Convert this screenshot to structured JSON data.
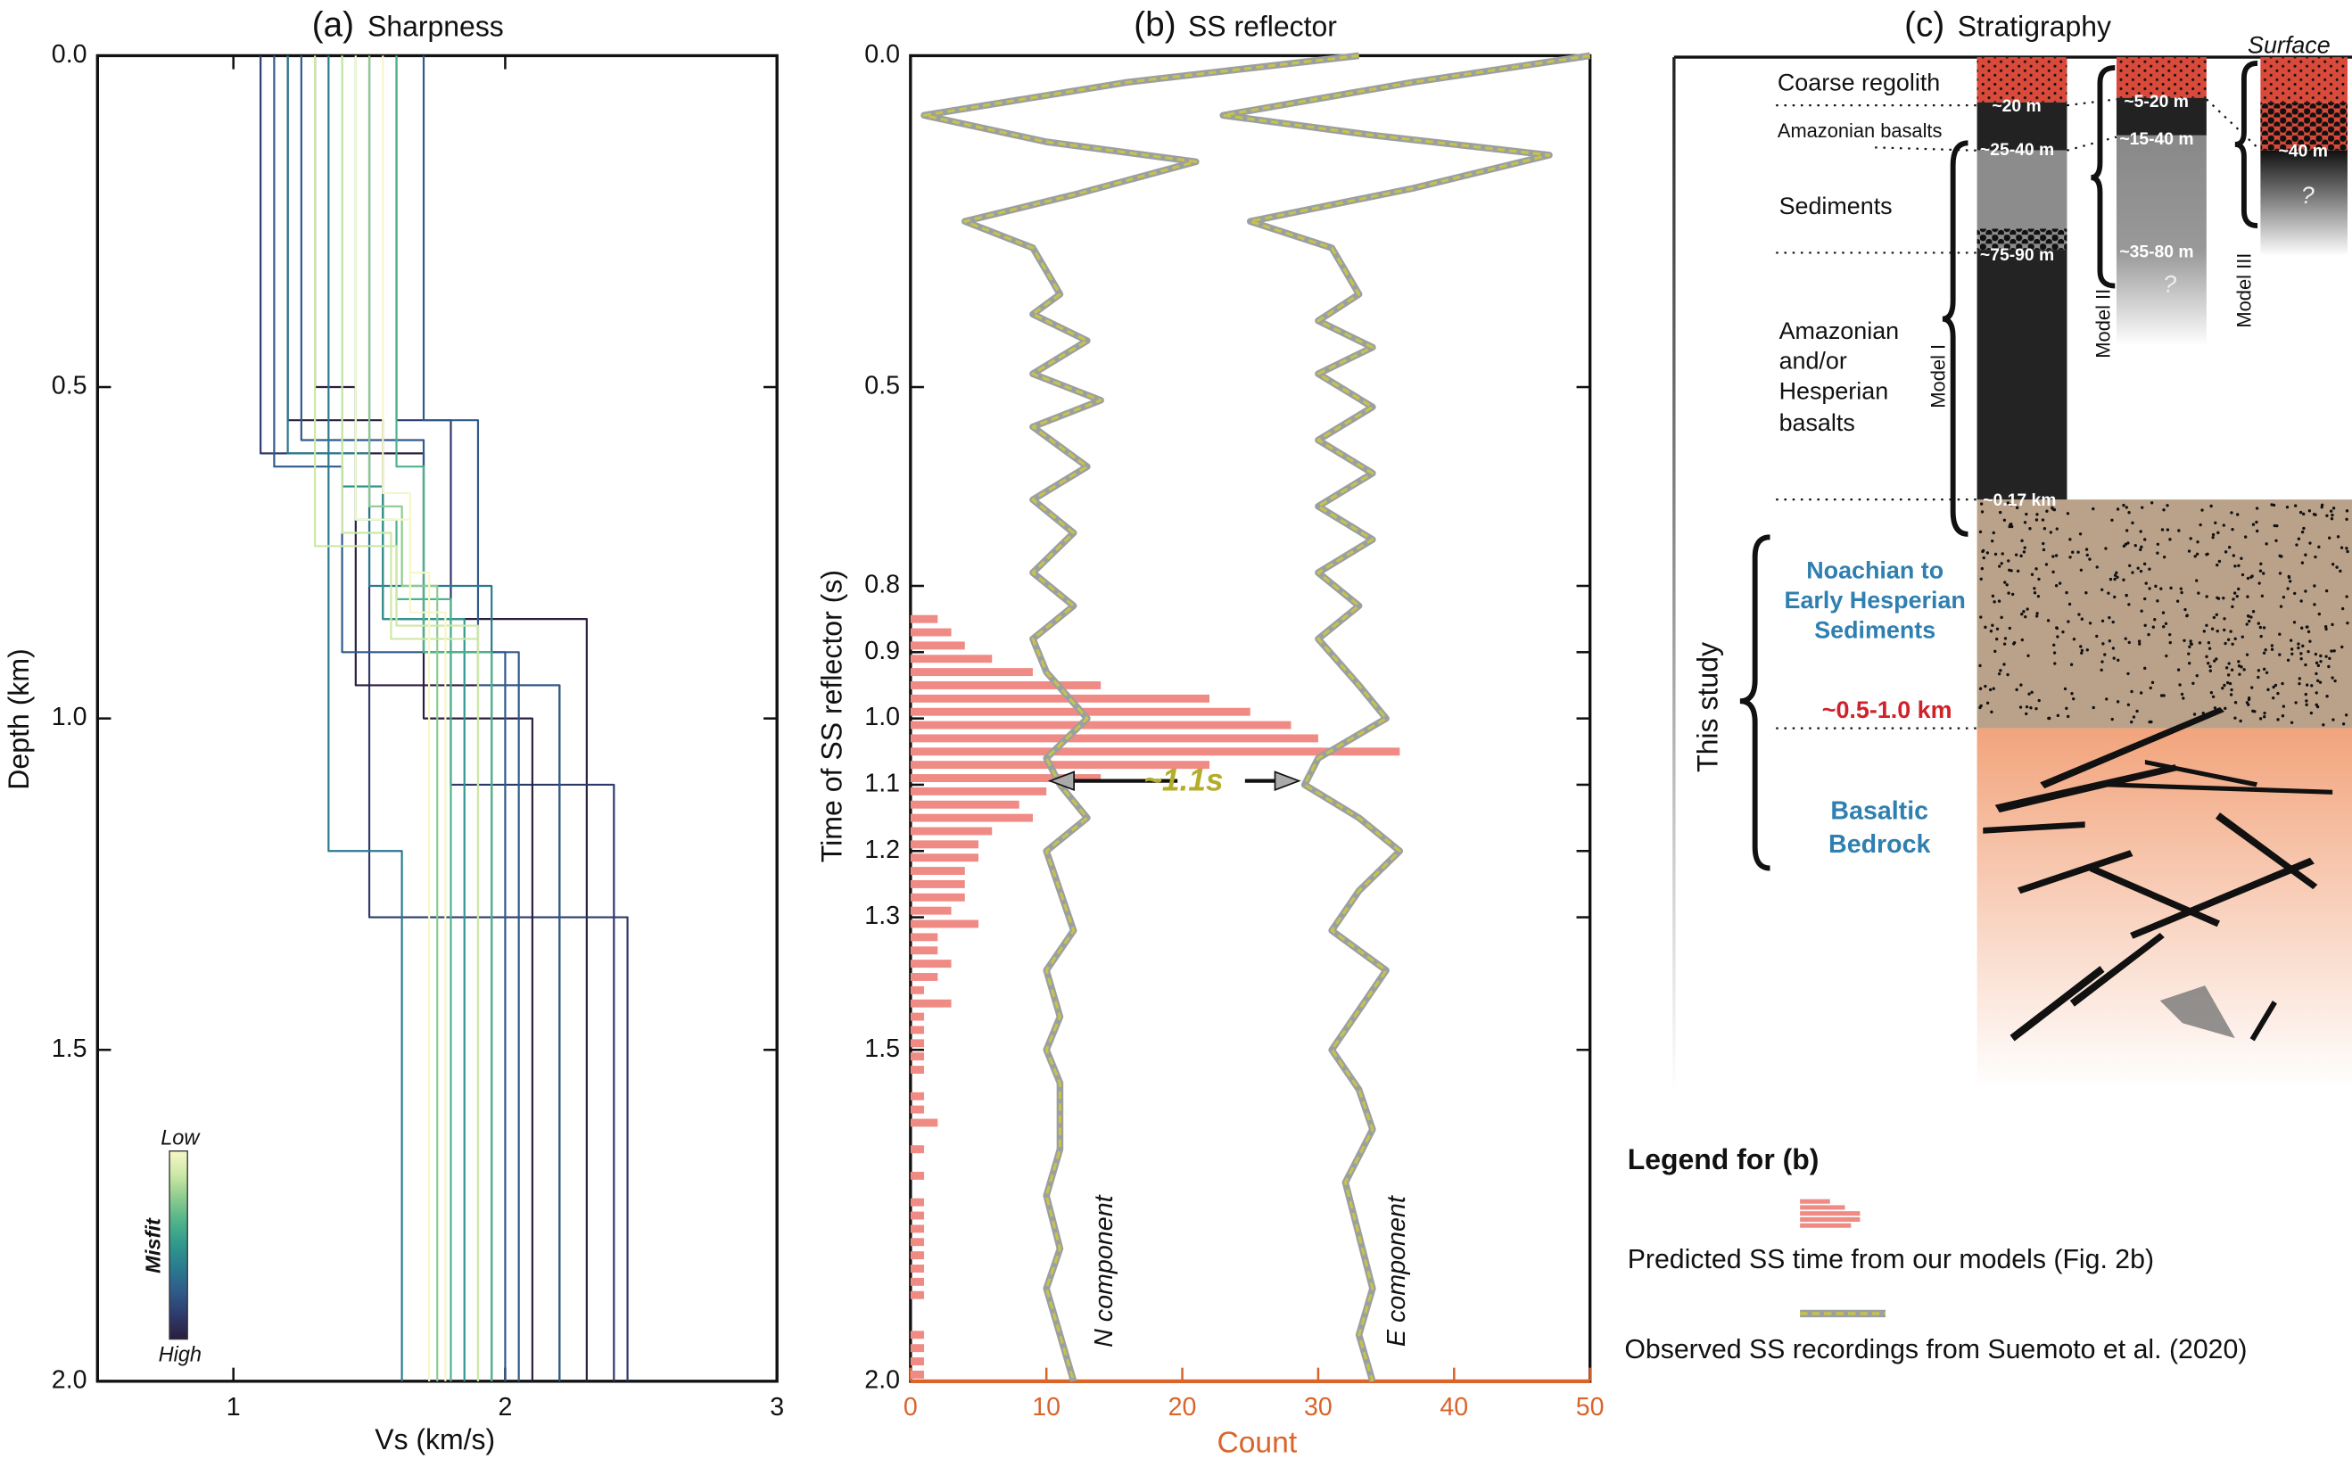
{
  "chart_data": [
    {
      "type": "line",
      "panel_label": "(a)",
      "title": "Sharpness",
      "xlabel": "Vs (km/s)",
      "ylabel": "Depth (km)",
      "xlim": [
        0.5,
        3
      ],
      "xticks": [
        1,
        2,
        3
      ],
      "ylim": [
        0,
        2
      ],
      "yinvert": true,
      "yticks": [
        {
          "value": 0,
          "label": "0.0"
        },
        0.5,
        {
          "value": 1,
          "label": "1.0"
        },
        1.5,
        {
          "value": 2,
          "label": "2.0"
        }
      ],
      "colorbar": {
        "label": "Misfit",
        "low": "Low",
        "high": "High",
        "colors": [
          "#2c1e3d",
          "#2e3a6b",
          "#2f5a8a",
          "#2a7a8e",
          "#2f978d",
          "#4fb38a",
          "#8ccb8f",
          "#cde8a7",
          "#f6f7c9"
        ]
      },
      "series": [
        {
          "color": "#2c1e3d",
          "x": [
            1.2,
            1.2,
            1.55,
            1.55,
            2.3,
            2.3
          ],
          "y": [
            0,
            0.55,
            0.55,
            0.85,
            0.85,
            2
          ]
        },
        {
          "color": "#2e3a6b",
          "x": [
            1.1,
            1.1,
            1.5,
            1.5,
            2.45,
            2.45
          ],
          "y": [
            0,
            0.6,
            0.6,
            1.3,
            1.3,
            2
          ]
        },
        {
          "color": "#2c1e3d",
          "x": [
            1.3,
            1.3,
            1.45,
            1.45,
            2.2,
            2.2
          ],
          "y": [
            0,
            0.5,
            0.5,
            0.95,
            0.95,
            2
          ]
        },
        {
          "color": "#2e3a6b",
          "x": [
            1.6,
            1.6,
            1.8,
            1.8,
            2.4,
            2.4
          ],
          "y": [
            0,
            0.55,
            0.55,
            1.1,
            1.1,
            2
          ]
        },
        {
          "color": "#2c1e3d",
          "x": [
            1.5,
            1.5,
            1.7,
            1.7,
            2.1,
            2.1
          ],
          "y": [
            0,
            0.6,
            0.6,
            1,
            1,
            2
          ]
        },
        {
          "color": "#2f5a8a",
          "x": [
            1.25,
            1.25,
            1.7,
            1.7,
            2.05,
            2.05
          ],
          "y": [
            0,
            0.58,
            0.58,
            0.9,
            0.9,
            2
          ]
        },
        {
          "color": "#2f5a8a",
          "x": [
            1.15,
            1.15,
            1.4,
            1.4,
            2,
            2
          ],
          "y": [
            0,
            0.62,
            0.62,
            0.9,
            0.9,
            2
          ]
        },
        {
          "color": "#2f5a8a",
          "x": [
            1.7,
            1.7,
            1.9,
            1.9,
            2.2,
            2.2
          ],
          "y": [
            0,
            0.55,
            0.55,
            0.95,
            0.95,
            2
          ]
        },
        {
          "color": "#2a7a8e",
          "x": [
            1.35,
            1.35,
            1.5,
            1.5,
            1.95,
            1.95
          ],
          "y": [
            0,
            0.6,
            0.6,
            0.8,
            0.8,
            2
          ]
        },
        {
          "color": "#2a7a8e",
          "x": [
            1.2,
            1.2,
            1.35,
            1.35,
            1.62,
            1.62
          ],
          "y": [
            0,
            0.6,
            0.6,
            1.2,
            1.2,
            2
          ]
        },
        {
          "color": "#2f978d",
          "x": [
            1.4,
            1.4,
            1.55,
            1.55,
            1.85,
            1.85
          ],
          "y": [
            0,
            0.65,
            0.65,
            0.85,
            0.85,
            2
          ]
        },
        {
          "color": "#4fb38a",
          "x": [
            1.45,
            1.45,
            1.6,
            1.6,
            1.8,
            1.8
          ],
          "y": [
            0,
            0.7,
            0.7,
            0.82,
            0.82,
            2
          ]
        },
        {
          "color": "#4fb38a",
          "x": [
            1.6,
            1.6,
            1.7,
            1.7,
            1.95,
            1.95
          ],
          "y": [
            0,
            0.62,
            0.62,
            0.9,
            0.9,
            2
          ]
        },
        {
          "color": "#8ccb8f",
          "x": [
            1.5,
            1.5,
            1.62,
            1.62,
            1.75,
            1.75
          ],
          "y": [
            0,
            0.68,
            0.68,
            0.8,
            0.8,
            2
          ]
        },
        {
          "color": "#cde8a7",
          "x": [
            1.4,
            1.4,
            1.58,
            1.58,
            1.9,
            1.9
          ],
          "y": [
            0,
            0.72,
            0.72,
            0.88,
            0.88,
            2
          ]
        },
        {
          "color": "#cde8a7",
          "x": [
            1.3,
            1.3,
            1.6,
            1.6,
            1.9,
            1.9
          ],
          "y": [
            0,
            0.74,
            0.74,
            0.86,
            0.86,
            2
          ]
        },
        {
          "color": "#f6f7c9",
          "x": [
            1.55,
            1.55,
            1.65,
            1.65,
            1.78,
            1.78
          ],
          "y": [
            0,
            0.66,
            0.66,
            0.84,
            0.84,
            2
          ]
        },
        {
          "color": "#f6f7c9",
          "x": [
            1.45,
            1.45,
            1.65,
            1.65,
            1.72,
            1.72
          ],
          "y": [
            0,
            0.7,
            0.7,
            0.78,
            0.78,
            2
          ]
        }
      ]
    },
    {
      "type": "histogram",
      "panel_label": "(b)",
      "title": "SS reflector",
      "xlabel": "Count",
      "ylabel": "Time of SS reflector (s)",
      "xlim": [
        0,
        50
      ],
      "xticks": [
        0,
        10,
        20,
        30,
        40,
        50
      ],
      "ylim": [
        0,
        2
      ],
      "yinvert": true,
      "yticks": [
        {
          "value": 0,
          "label": "0.0"
        },
        0.5,
        0.8,
        0.9,
        {
          "value": 1,
          "label": "1.0"
        },
        1.1,
        1.2,
        1.3,
        1.5,
        {
          "value": 2,
          "label": "2.0"
        }
      ],
      "axis_color": "#d9652b",
      "legend_title": "Legend for (b)",
      "histogram": {
        "name": "Predicted SS time from our models (Fig. 2b)",
        "color": "#f08a84",
        "bins": [
          0.84,
          0.86,
          0.88,
          0.9,
          0.92,
          0.94,
          0.96,
          0.98,
          1,
          1.02,
          1.04,
          1.06,
          1.08,
          1.1,
          1.12,
          1.14,
          1.16,
          1.18,
          1.2,
          1.22,
          1.24,
          1.26,
          1.28,
          1.3,
          1.32,
          1.34,
          1.36,
          1.38,
          1.4,
          1.42,
          1.44,
          1.46,
          1.48,
          1.5,
          1.52,
          1.54,
          1.56,
          1.58,
          1.6,
          1.62,
          1.64,
          1.66,
          1.68,
          1.7,
          1.72,
          1.74,
          1.76,
          1.78,
          1.8,
          1.82,
          1.84,
          1.86,
          1.88,
          1.9,
          1.92,
          1.94,
          1.96,
          1.98,
          2
        ],
        "counts": [
          2,
          3,
          4,
          6,
          9,
          14,
          22,
          25,
          28,
          30,
          36,
          22,
          14,
          10,
          8,
          9,
          6,
          5,
          5,
          4,
          4,
          4,
          3,
          5,
          2,
          2,
          3,
          2,
          1,
          3,
          1,
          1,
          1,
          1,
          1,
          0,
          1,
          1,
          2,
          0,
          1,
          0,
          1,
          0,
          1,
          1,
          1,
          1,
          1,
          1,
          1,
          1,
          0,
          0,
          1,
          1,
          1,
          1
        ]
      },
      "trace_name": "Observed SS recordings from Suemoto et al. (2020)",
      "trace_color": "#c9c24a",
      "trace_outline": "#9aa0a0",
      "annotation": "~1.1s",
      "series": [
        {
          "label": "N component",
          "x": [
            33,
            16,
            1,
            10,
            21,
            12,
            4,
            9,
            11,
            9,
            13,
            9,
            14,
            9,
            13,
            9,
            12,
            9,
            12,
            9,
            10,
            13,
            10,
            11,
            13,
            10,
            11,
            12,
            10,
            11,
            10,
            11,
            11,
            10,
            11,
            10,
            11,
            12
          ],
          "y": [
            0,
            0.04,
            0.09,
            0.13,
            0.16,
            0.21,
            0.25,
            0.29,
            0.36,
            0.39,
            0.43,
            0.48,
            0.52,
            0.56,
            0.62,
            0.67,
            0.72,
            0.78,
            0.83,
            0.88,
            0.93,
            1,
            1.06,
            1.1,
            1.15,
            1.2,
            1.26,
            1.32,
            1.38,
            1.45,
            1.5,
            1.55,
            1.65,
            1.72,
            1.8,
            1.86,
            1.93,
            2
          ]
        },
        {
          "label": "E component",
          "x": [
            50,
            37,
            23,
            34,
            47,
            37,
            25,
            31,
            33,
            30,
            34,
            30,
            34,
            30,
            34,
            30,
            34,
            30,
            33,
            30,
            33,
            35,
            30,
            29,
            33,
            36,
            33,
            31,
            35,
            33,
            31,
            33,
            34,
            32,
            33,
            34,
            33,
            34
          ],
          "y": [
            0,
            0.04,
            0.09,
            0.12,
            0.15,
            0.2,
            0.25,
            0.29,
            0.36,
            0.4,
            0.44,
            0.48,
            0.53,
            0.58,
            0.63,
            0.68,
            0.73,
            0.78,
            0.83,
            0.88,
            0.95,
            1,
            1.06,
            1.1,
            1.15,
            1.2,
            1.26,
            1.32,
            1.38,
            1.44,
            1.5,
            1.56,
            1.62,
            1.7,
            1.78,
            1.86,
            1.93,
            2
          ]
        }
      ]
    }
  ],
  "stratigraphy": {
    "label": "(c)",
    "title": "Stratigraphy",
    "surface": "Surface",
    "layers": [
      "Coarse regolith",
      "Amazonian basalts",
      "Sediments",
      [
        "Amazonian",
        "and/or",
        "Hesperian",
        "basalts"
      ]
    ],
    "model_1": {
      "name": "Model I",
      "depths": [
        "~20 m",
        "~25-40 m",
        "~75-90 m",
        "~0.17 km"
      ]
    },
    "model_2": {
      "name": "Model II",
      "depths": [
        "~5-20 m",
        "~15-40 m",
        "~35-80 m"
      ],
      "unknown": "?"
    },
    "model_3": {
      "name": "Model III",
      "depths": [
        "~40 m"
      ],
      "unknown": "?"
    },
    "this_study": {
      "label": "This study",
      "sediments": [
        "Noachian to",
        "Early Hesperian",
        "Sediments"
      ],
      "depth": "~0.5-1.0 km",
      "bedrock": [
        "Basaltic",
        "Bedrock"
      ]
    }
  }
}
